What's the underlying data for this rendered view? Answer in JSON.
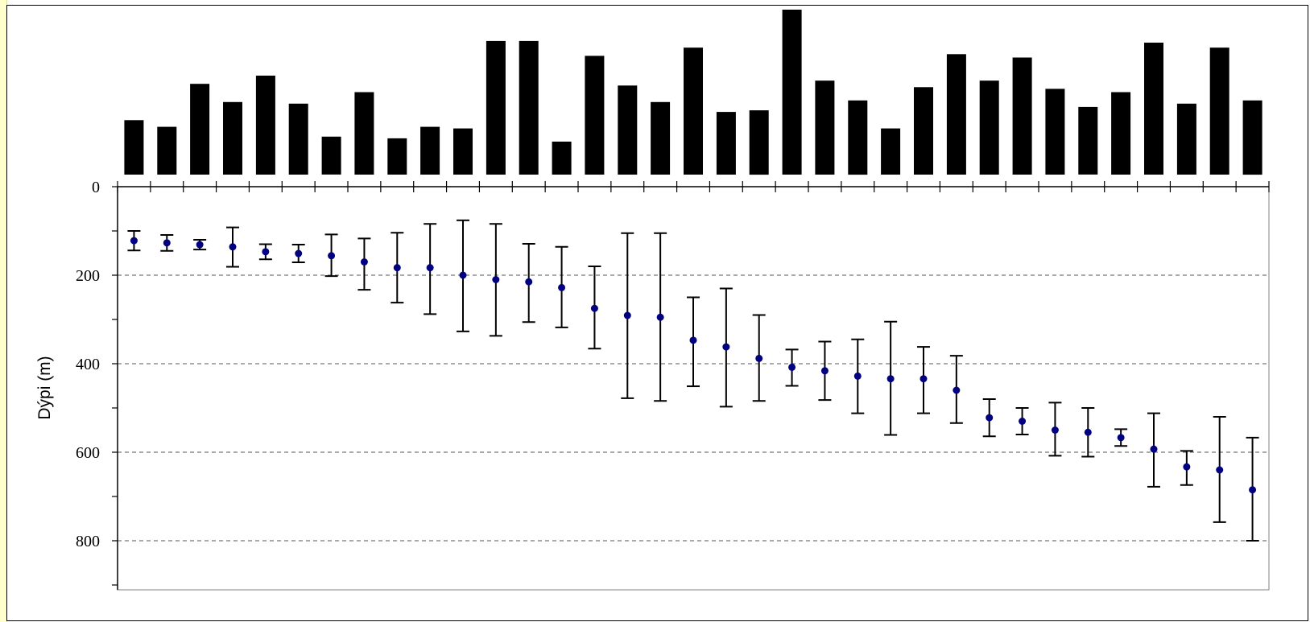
{
  "chart_data": {
    "type": "bar+errorbar",
    "title": "",
    "xlabel": "",
    "ylabel": "Dýpi (m)",
    "ylim": [
      0,
      900
    ],
    "y_inverted": true,
    "yticks": [
      0,
      200,
      400,
      600,
      800
    ],
    "ytick_labels": [
      "0",
      "200",
      "400",
      "600",
      "800"
    ],
    "grid": "horizontal dashed at 200, 400, 600, 800",
    "colors": {
      "bars": "#000000",
      "points": "#000080",
      "errorbars": "#000000",
      "grid": "#555555"
    },
    "bars": {
      "description": "relative bar heights (no axis printed)",
      "values": [
        0.33,
        0.29,
        0.55,
        0.44,
        0.6,
        0.43,
        0.23,
        0.5,
        0.22,
        0.29,
        0.28,
        0.81,
        0.81,
        0.2,
        0.72,
        0.54,
        0.44,
        0.77,
        0.38,
        0.39,
        1.0,
        0.57,
        0.45,
        0.28,
        0.53,
        0.73,
        0.57,
        0.71,
        0.52,
        0.41,
        0.5,
        0.8,
        0.43,
        0.77,
        0.45
      ]
    },
    "series": [
      {
        "type": "scatter-with-errorbars",
        "values": [
          122,
          127,
          131,
          136,
          147,
          151,
          156,
          170,
          183,
          183,
          200,
          210,
          215,
          228,
          275,
          291,
          295,
          347,
          362,
          388,
          408,
          416,
          428,
          434,
          434,
          460,
          522,
          530,
          550,
          555,
          567,
          593,
          633,
          640,
          685
        ],
        "lower": [
          100,
          109,
          120,
          92,
          130,
          131,
          108,
          117,
          104,
          84,
          76,
          84,
          129,
          136,
          180,
          105,
          105,
          250,
          230,
          290,
          368,
          350,
          345,
          305,
          362,
          382,
          480,
          500,
          488,
          500,
          548,
          512,
          597,
          520,
          567
        ],
        "upper": [
          144,
          145,
          142,
          181,
          164,
          171,
          202,
          233,
          262,
          288,
          327,
          337,
          306,
          318,
          366,
          478,
          484,
          451,
          497,
          484,
          450,
          482,
          512,
          561,
          512,
          534,
          564,
          560,
          608,
          610,
          586,
          678,
          674,
          758,
          800
        ]
      }
    ]
  }
}
